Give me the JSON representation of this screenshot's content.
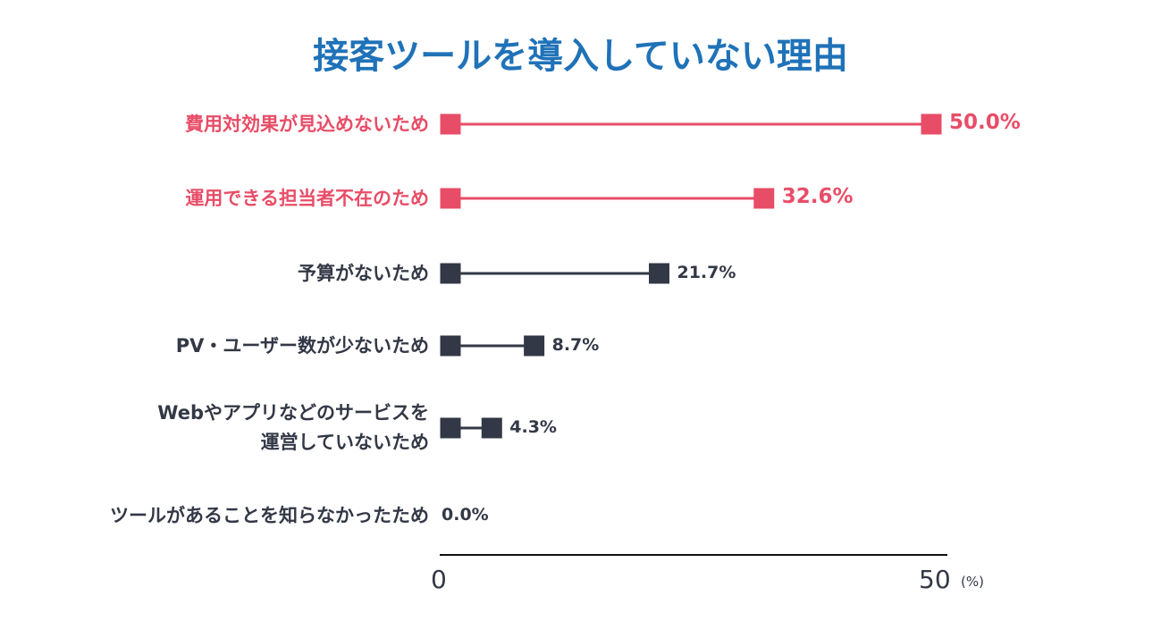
{
  "chart_data": {
    "type": "dumbbell",
    "title": "接客ツールを導入していない理由",
    "categories": [
      "費用対効果が見込めないため",
      "運用できる担当者不在のため",
      "予算がないため",
      "PV・ユーザー数が少ないため",
      "Webやアプリなどのサービスを\n運営していないため",
      "ツールがあることを知らなかったため"
    ],
    "values": [
      50.0,
      32.6,
      21.7,
      8.7,
      4.3,
      0.0
    ],
    "value_labels": [
      "50.0%",
      "32.6%",
      "21.7%",
      "8.7%",
      "4.3%",
      "0.0%"
    ],
    "highlighted": [
      true,
      true,
      false,
      false,
      false,
      false
    ],
    "xlim": [
      0,
      50
    ],
    "x_ticks": [
      "0",
      "50"
    ],
    "x_unit": "(%)",
    "grid": false,
    "colors": {
      "highlight": "#e84d67",
      "normal": "#333846",
      "title": "#1f72b8"
    }
  }
}
